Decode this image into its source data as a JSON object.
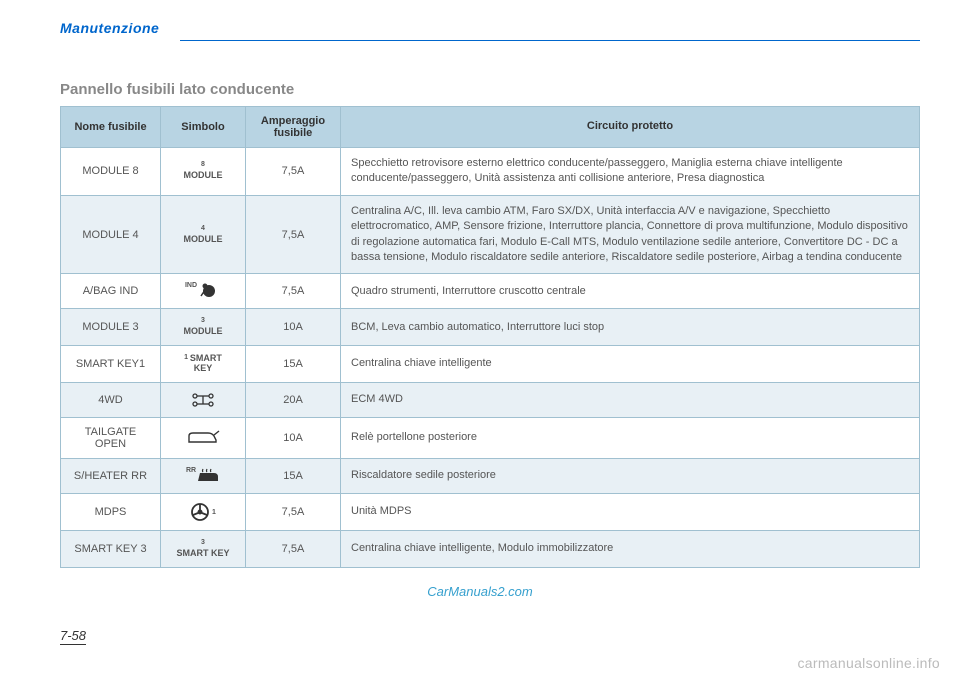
{
  "header": {
    "title": "Manutenzione"
  },
  "section": {
    "title": "Pannello fusibili lato conducente"
  },
  "table": {
    "columns": [
      "Nome fusibile",
      "Simbolo",
      "Amperaggio fusibile",
      "Circuito protetto"
    ],
    "rows": [
      {
        "name": "MODULE 8",
        "symbol": {
          "type": "text",
          "sup": "8",
          "label": "MODULE"
        },
        "amp": "7,5A",
        "circuit": "Specchietto retrovisore esterno elettrico conducente/passeggero, Maniglia esterna chiave intelligente conducente/passeggero, Unità assistenza anti collisione anteriore, Presa diagnostica"
      },
      {
        "name": "MODULE 4",
        "symbol": {
          "type": "text",
          "sup": "4",
          "label": "MODULE"
        },
        "amp": "7,5A",
        "circuit": "Centralina A/C, Ill. leva cambio ATM, Faro SX/DX, Unità interfaccia A/V e navigazione, Specchietto elettrocromatico, AMP, Sensore frizione, Interruttore plancia, Connettore di prova multifunzione, Modulo dispositivo di regolazione automatica fari, Modulo E-Call MTS, Modulo ventilazione sedile anteriore, Convertitore DC - DC a bassa tensione, Modulo riscaldatore sedile anteriore, Riscaldatore sedile posteriore, Airbag a tendina conducente"
      },
      {
        "name": "A/BAG IND",
        "symbol": {
          "type": "airbag",
          "sup": "IND"
        },
        "amp": "7,5A",
        "circuit": "Quadro strumenti, Interruttore cruscotto centrale"
      },
      {
        "name": "MODULE 3",
        "symbol": {
          "type": "text",
          "sup": "3",
          "label": "MODULE"
        },
        "amp": "10A",
        "circuit": "BCM, Leva cambio automatico, Interruttore luci stop"
      },
      {
        "name": "SMART KEY1",
        "symbol": {
          "type": "text",
          "sup": "1",
          "label": "SMART KEY",
          "stacked": true
        },
        "amp": "15A",
        "circuit": "Centralina chiave intelligente"
      },
      {
        "name": "4WD",
        "symbol": {
          "type": "4wd"
        },
        "amp": "20A",
        "circuit": "ECM 4WD"
      },
      {
        "name": "TAILGATE OPEN",
        "symbol": {
          "type": "tailgate"
        },
        "amp": "10A",
        "circuit": "Relè portellone posteriore"
      },
      {
        "name": "S/HEATER RR",
        "symbol": {
          "type": "heater",
          "sup": "RR"
        },
        "amp": "15A",
        "circuit": "Riscaldatore sedile posteriore"
      },
      {
        "name": "MDPS",
        "symbol": {
          "type": "steering",
          "sup": "1"
        },
        "amp": "7,5A",
        "circuit": "Unità MDPS"
      },
      {
        "name": "SMART KEY 3",
        "symbol": {
          "type": "text",
          "sup": "3",
          "label": "SMART KEY"
        },
        "amp": "7,5A",
        "circuit": "Centralina chiave intelligente, Modulo immobilizzatore"
      }
    ],
    "header_bg": "#b8d4e3",
    "row_even_bg": "#e8f0f5",
    "row_odd_bg": "#ffffff",
    "border_color": "#a0c0d0",
    "text_color": "#555555"
  },
  "page_number": "7-58",
  "watermark1": "CarManuals2.com",
  "watermark2": "carmanualsonline.info"
}
